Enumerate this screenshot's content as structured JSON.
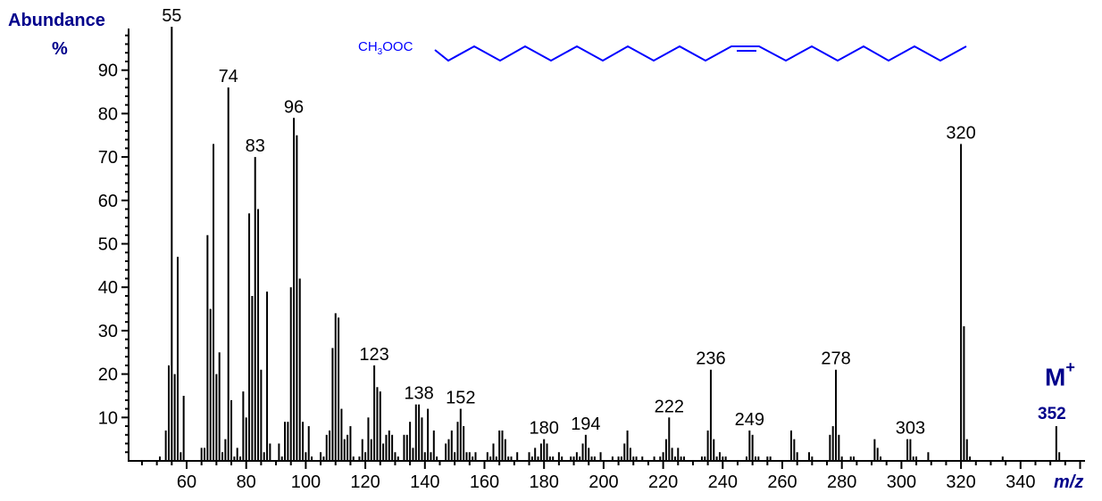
{
  "labels": {
    "y_title": "Abundance",
    "y_unit": "%",
    "x_title": "m/z",
    "molecular_ion_label": "M",
    "molecular_ion_charge": "+",
    "molecular_ion_value": "352",
    "formula_prefix": "CH",
    "formula_sub": "3",
    "formula_suffix": "OOC"
  },
  "colors": {
    "axis": "#000000",
    "peaks": "#000000",
    "title_text": "#00008B",
    "structure": "#0000FF"
  },
  "chart_data": {
    "type": "bar",
    "title": "",
    "xlabel": "m/z",
    "ylabel": "Abundance %",
    "xlim": [
      40,
      361
    ],
    "ylim": [
      0,
      100
    ],
    "x_ticks": [
      60,
      80,
      100,
      120,
      140,
      160,
      180,
      200,
      220,
      240,
      260,
      280,
      300,
      320,
      340
    ],
    "y_ticks": [
      10,
      20,
      30,
      40,
      50,
      60,
      70,
      80,
      90
    ],
    "grid": false,
    "legend": null,
    "annotated_peaks": [
      "55",
      "74",
      "83",
      "96",
      "123",
      "138",
      "152",
      "180",
      "194",
      "222",
      "236",
      "249",
      "278",
      "303",
      "320"
    ],
    "annotations": [
      "M+",
      "352"
    ],
    "structure": "CH3OOC-(CH2)n-CH=CH-(CH2)n-CH3 (methyl ester chain with one cis double bond)",
    "peaks": [
      [
        51,
        1
      ],
      [
        53,
        7
      ],
      [
        54,
        22
      ],
      [
        55,
        100
      ],
      [
        56,
        20
      ],
      [
        57,
        47
      ],
      [
        58,
        2
      ],
      [
        59,
        15
      ],
      [
        65,
        3
      ],
      [
        66,
        3
      ],
      [
        67,
        52
      ],
      [
        68,
        35
      ],
      [
        69,
        73
      ],
      [
        70,
        20
      ],
      [
        71,
        25
      ],
      [
        72,
        2
      ],
      [
        73,
        5
      ],
      [
        74,
        86
      ],
      [
        75,
        14
      ],
      [
        76,
        1
      ],
      [
        77,
        3
      ],
      [
        78,
        1
      ],
      [
        79,
        16
      ],
      [
        80,
        10
      ],
      [
        81,
        57
      ],
      [
        82,
        38
      ],
      [
        83,
        70
      ],
      [
        84,
        58
      ],
      [
        85,
        21
      ],
      [
        86,
        2
      ],
      [
        87,
        39
      ],
      [
        88,
        4
      ],
      [
        91,
        4
      ],
      [
        92,
        1
      ],
      [
        93,
        9
      ],
      [
        94,
        9
      ],
      [
        95,
        40
      ],
      [
        96,
        79
      ],
      [
        97,
        75
      ],
      [
        98,
        42
      ],
      [
        99,
        9
      ],
      [
        100,
        2
      ],
      [
        101,
        8
      ],
      [
        102,
        1
      ],
      [
        105,
        2
      ],
      [
        106,
        1
      ],
      [
        107,
        6
      ],
      [
        108,
        7
      ],
      [
        109,
        26
      ],
      [
        110,
        34
      ],
      [
        111,
        33
      ],
      [
        112,
        12
      ],
      [
        113,
        5
      ],
      [
        114,
        6
      ],
      [
        115,
        8
      ],
      [
        116,
        1
      ],
      [
        118,
        1
      ],
      [
        119,
        5
      ],
      [
        120,
        2
      ],
      [
        121,
        10
      ],
      [
        122,
        5
      ],
      [
        123,
        22
      ],
      [
        124,
        17
      ],
      [
        125,
        16
      ],
      [
        126,
        4
      ],
      [
        127,
        6
      ],
      [
        128,
        7
      ],
      [
        129,
        6
      ],
      [
        130,
        2
      ],
      [
        131,
        1
      ],
      [
        133,
        6
      ],
      [
        134,
        6
      ],
      [
        135,
        9
      ],
      [
        136,
        3
      ],
      [
        137,
        13
      ],
      [
        138,
        13
      ],
      [
        139,
        10
      ],
      [
        140,
        2
      ],
      [
        141,
        12
      ],
      [
        142,
        2
      ],
      [
        143,
        7
      ],
      [
        144,
        1
      ],
      [
        147,
        4
      ],
      [
        148,
        5
      ],
      [
        149,
        7
      ],
      [
        150,
        2
      ],
      [
        151,
        9
      ],
      [
        152,
        12
      ],
      [
        153,
        8
      ],
      [
        154,
        2
      ],
      [
        155,
        2
      ],
      [
        156,
        1
      ],
      [
        157,
        2
      ],
      [
        161,
        2
      ],
      [
        162,
        1
      ],
      [
        163,
        4
      ],
      [
        164,
        1
      ],
      [
        165,
        7
      ],
      [
        166,
        7
      ],
      [
        167,
        5
      ],
      [
        168,
        1
      ],
      [
        169,
        1
      ],
      [
        171,
        2
      ],
      [
        175,
        2
      ],
      [
        176,
        1
      ],
      [
        177,
        3
      ],
      [
        178,
        1
      ],
      [
        179,
        4
      ],
      [
        180,
        5
      ],
      [
        181,
        4
      ],
      [
        182,
        1
      ],
      [
        183,
        1
      ],
      [
        185,
        2
      ],
      [
        186,
        1
      ],
      [
        189,
        1
      ],
      [
        190,
        1
      ],
      [
        191,
        2
      ],
      [
        192,
        1
      ],
      [
        193,
        4
      ],
      [
        194,
        6
      ],
      [
        195,
        3
      ],
      [
        196,
        1
      ],
      [
        197,
        1
      ],
      [
        199,
        2
      ],
      [
        203,
        1
      ],
      [
        205,
        1
      ],
      [
        206,
        1
      ],
      [
        207,
        4
      ],
      [
        208,
        7
      ],
      [
        209,
        3
      ],
      [
        210,
        1
      ],
      [
        211,
        1
      ],
      [
        213,
        1
      ],
      [
        217,
        1
      ],
      [
        219,
        1
      ],
      [
        220,
        2
      ],
      [
        221,
        5
      ],
      [
        222,
        10
      ],
      [
        223,
        3
      ],
      [
        224,
        1
      ],
      [
        225,
        3
      ],
      [
        226,
        1
      ],
      [
        227,
        1
      ],
      [
        233,
        1
      ],
      [
        234,
        1
      ],
      [
        235,
        7
      ],
      [
        236,
        21
      ],
      [
        237,
        5
      ],
      [
        238,
        1
      ],
      [
        239,
        2
      ],
      [
        240,
        1
      ],
      [
        241,
        1
      ],
      [
        248,
        1
      ],
      [
        249,
        7
      ],
      [
        250,
        6
      ],
      [
        251,
        1
      ],
      [
        252,
        1
      ],
      [
        255,
        1
      ],
      [
        256,
        1
      ],
      [
        263,
        7
      ],
      [
        264,
        5
      ],
      [
        265,
        2
      ],
      [
        269,
        2
      ],
      [
        270,
        1
      ],
      [
        276,
        6
      ],
      [
        277,
        8
      ],
      [
        278,
        21
      ],
      [
        279,
        6
      ],
      [
        280,
        1
      ],
      [
        283,
        1
      ],
      [
        284,
        1
      ],
      [
        291,
        5
      ],
      [
        292,
        3
      ],
      [
        293,
        1
      ],
      [
        302,
        5
      ],
      [
        303,
        5
      ],
      [
        304,
        1
      ],
      [
        305,
        1
      ],
      [
        309,
        2
      ],
      [
        320,
        73
      ],
      [
        321,
        31
      ],
      [
        322,
        5
      ],
      [
        323,
        1
      ],
      [
        334,
        1
      ],
      [
        352,
        8
      ],
      [
        353,
        2
      ]
    ]
  }
}
